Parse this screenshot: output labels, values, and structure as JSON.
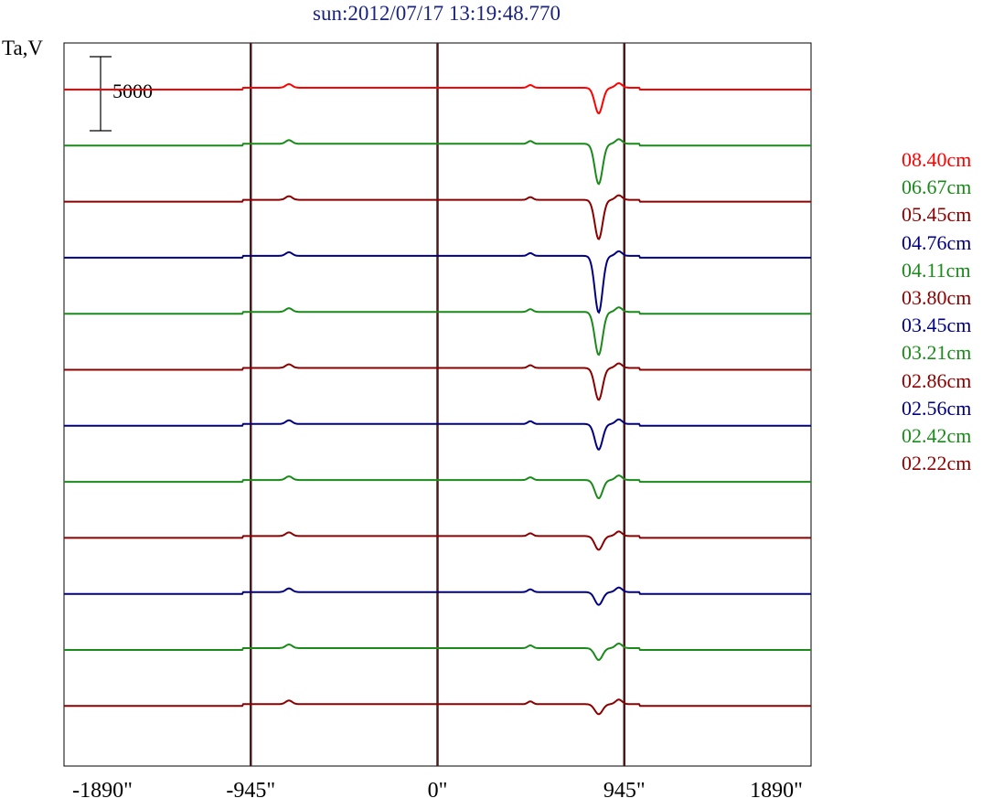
{
  "chart_data": {
    "type": "line",
    "title": "sun:2012/07/17 13:19:48.770",
    "ylabel": "Ta,V",
    "xlabel": "",
    "scale_bar_label": "5000",
    "scale_bar_value": 5000,
    "x_ticks": [
      "-1890\"",
      "-945\"",
      "0\"",
      "945\"",
      "1890\""
    ],
    "x_tick_values": [
      -1890,
      -945,
      0,
      945,
      1890
    ],
    "xlim": [
      -1890,
      1890
    ],
    "vertical_markers": [
      -945,
      0,
      945
    ],
    "marker_color": "#4a1a1a",
    "series": [
      {
        "name": "08.40cm",
        "color": "#ff0000",
        "dip_depth": 28,
        "dip_x": 830
      },
      {
        "name": "06.67cm",
        "color": "#1a8a1a",
        "dip_depth": 44,
        "dip_x": 825
      },
      {
        "name": "05.45cm",
        "color": "#8b0000",
        "dip_depth": 43,
        "dip_x": 810
      },
      {
        "name": "04.76cm",
        "color": "#000080",
        "dip_depth": 62,
        "dip_x": 805
      },
      {
        "name": "04.11cm",
        "color": "#1a8a1a",
        "dip_depth": 47,
        "dip_x": 810
      },
      {
        "name": "03.80cm",
        "color": "#8b0000",
        "dip_depth": 35,
        "dip_x": 805
      },
      {
        "name": "03.45cm",
        "color": "#000080",
        "dip_depth": 28,
        "dip_x": 810
      },
      {
        "name": "03.21cm",
        "color": "#1a8a1a",
        "dip_depth": 20,
        "dip_x": 805
      },
      {
        "name": "02.86cm",
        "color": "#8b0000",
        "dip_depth": 15,
        "dip_x": 810
      },
      {
        "name": "02.56cm",
        "color": "#000080",
        "dip_depth": 14,
        "dip_x": 810
      },
      {
        "name": "02.42cm",
        "color": "#1a8a1a",
        "dip_depth": 13,
        "dip_x": 805
      },
      {
        "name": "02.22cm",
        "color": "#8b0000",
        "dip_depth": 11,
        "dip_x": 810
      }
    ]
  }
}
